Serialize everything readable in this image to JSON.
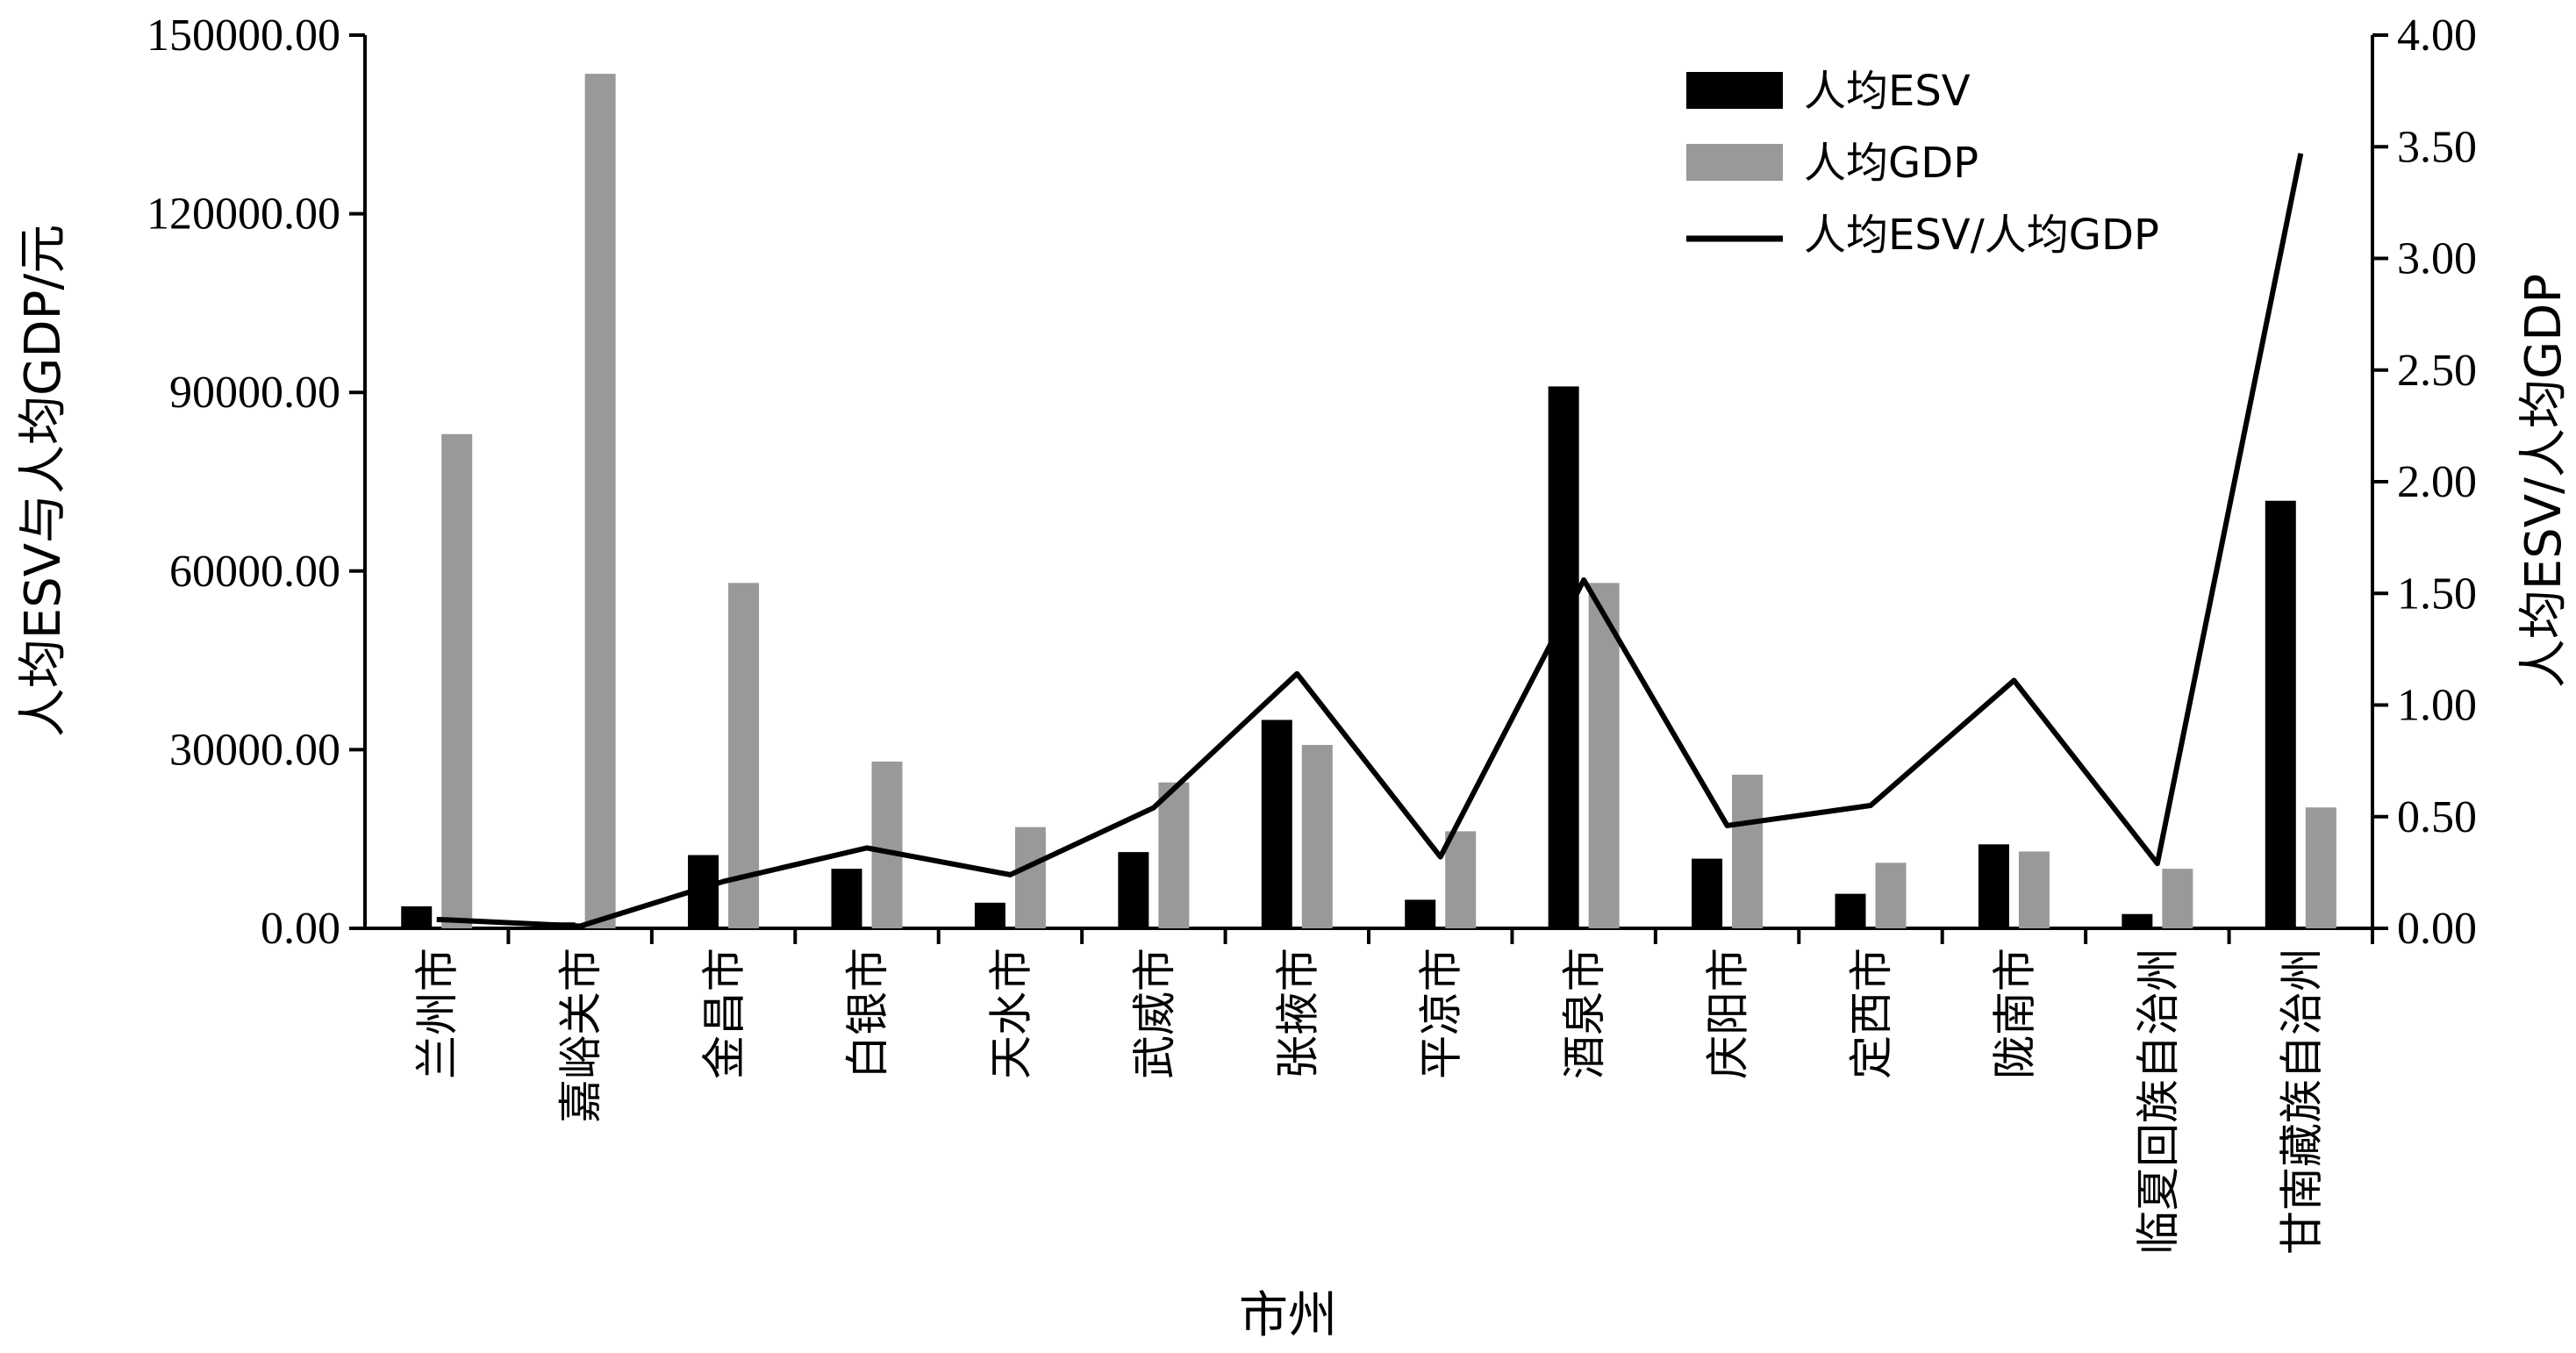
{
  "chart_data": {
    "type": "bar",
    "categories": [
      "兰州市",
      "嘉峪关市",
      "金昌市",
      "白银市",
      "天水市",
      "武威市",
      "张掖市",
      "平凉市",
      "酒泉市",
      "庆阳市",
      "定西市",
      "陇南市",
      "临夏回族自治州",
      "甘南藏族自治州"
    ],
    "series": [
      {
        "name": "人均ESV",
        "axis": "left",
        "kind": "bar",
        "color": "#000000",
        "values": [
          3700,
          1000,
          12300,
          10000,
          4300,
          12800,
          35000,
          4800,
          91000,
          11700,
          5800,
          14100,
          2400,
          71800
        ]
      },
      {
        "name": "人均GDP",
        "axis": "left",
        "kind": "bar",
        "color": "#999999",
        "values": [
          83000,
          143500,
          58000,
          28000,
          17000,
          24500,
          30800,
          16300,
          58000,
          25800,
          11000,
          12900,
          10000,
          20300
        ]
      },
      {
        "name": "人均ESV/人均GDP",
        "axis": "right",
        "kind": "line",
        "color": "#000000",
        "values": [
          0.04,
          0.01,
          0.21,
          0.36,
          0.24,
          0.54,
          1.14,
          0.32,
          1.56,
          0.46,
          0.55,
          1.11,
          0.29,
          3.47
        ]
      }
    ],
    "legend_labels": [
      "人均ESV",
      "人均GDP",
      "人均ESV/人均GDP"
    ],
    "xlabel": "市州",
    "ylabel": "人均ESV与人均GDP/元",
    "ylabel_right": "人均ESV/人均GDP",
    "ylim": [
      0,
      150000
    ],
    "ylim_right": [
      0,
      4
    ],
    "yticks": [
      "0.00",
      "30000.00",
      "60000.00",
      "90000.00",
      "120000.00",
      "150000.00"
    ],
    "yticks_right": [
      "0.00",
      "0.50",
      "1.00",
      "1.50",
      "2.00",
      "2.50",
      "3.00",
      "3.50",
      "4.00"
    ],
    "legend_position": "top-right",
    "grid": false
  }
}
